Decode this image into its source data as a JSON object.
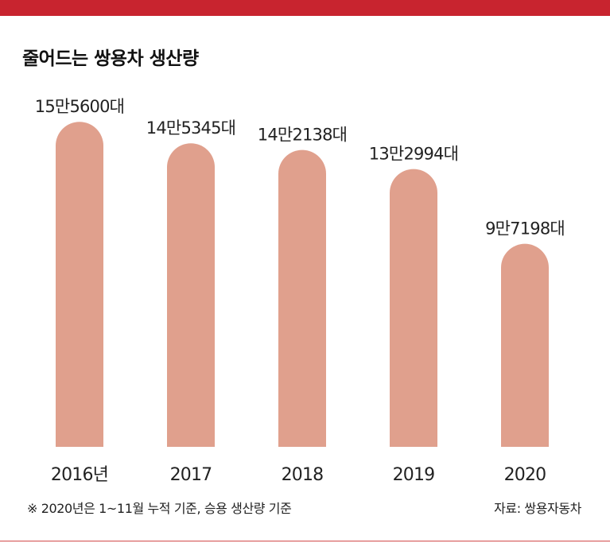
{
  "title": "줄어드는 쌍용차 생산량",
  "colors": {
    "accent": "#c8242f",
    "bar": "#e0a08d"
  },
  "chart_data": {
    "type": "bar",
    "title": "줄어드는 쌍용차 생산량",
    "categories": [
      "2016년",
      "2017",
      "2018",
      "2019",
      "2020"
    ],
    "values": [
      155600,
      145345,
      142138,
      132994,
      97198
    ],
    "data_labels": [
      "15만5600대",
      "14만5345대",
      "14만2138대",
      "13만2994대",
      "9만7198대"
    ],
    "xlabel": "",
    "ylabel": "",
    "grid": false
  },
  "footnote": "※ 2020년은 1~11월 누적 기준, 승용 생산량 기준",
  "source": "자료: 쌍용자동차"
}
